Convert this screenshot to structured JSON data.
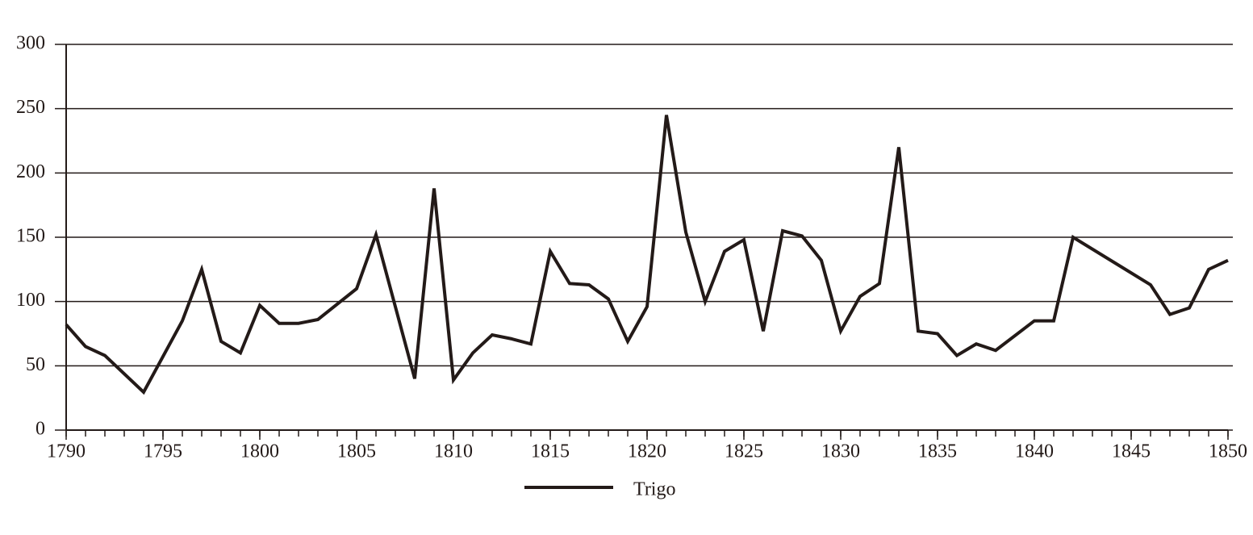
{
  "chart_data": {
    "type": "line",
    "x": [
      1790,
      1791,
      1792,
      1794,
      1796,
      1797,
      1798,
      1799,
      1800,
      1801,
      1802,
      1803,
      1805,
      1806,
      1808,
      1809,
      1810,
      1811,
      1812,
      1813,
      1814,
      1815,
      1816,
      1817,
      1818,
      1819,
      1820,
      1821,
      1822,
      1823,
      1824,
      1825,
      1826,
      1827,
      1828,
      1829,
      1830,
      1831,
      1832,
      1833,
      1834,
      1835,
      1836,
      1837,
      1838,
      1840,
      1841,
      1842,
      1846,
      1847,
      1848,
      1849,
      1850
    ],
    "series": [
      {
        "name": "Trigo",
        "color": "#231a18",
        "values": [
          82,
          65,
          58,
          29.5,
          85,
          125,
          69,
          60,
          97,
          83,
          83,
          86,
          110,
          152,
          40,
          188,
          39,
          60,
          74,
          71,
          67,
          139,
          114,
          113,
          102,
          69,
          96,
          245,
          154,
          100,
          139,
          148,
          77,
          155,
          151,
          132,
          77,
          104,
          114,
          220,
          77,
          75,
          58,
          67,
          62,
          85,
          85,
          150,
          113,
          90,
          95,
          125,
          132
        ]
      }
    ],
    "xlim": [
      1790,
      1850
    ],
    "xticks": [
      1790,
      1795,
      1800,
      1805,
      1810,
      1815,
      1820,
      1825,
      1830,
      1835,
      1840,
      1845,
      1850
    ],
    "ylim": [
      0,
      300
    ],
    "yticks": [
      0,
      50,
      100,
      150,
      200,
      250,
      300
    ],
    "grid": true,
    "legend": "bottom"
  }
}
